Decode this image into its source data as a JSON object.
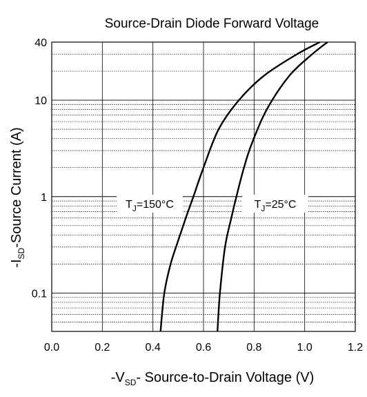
{
  "chart_data": {
    "type": "line",
    "title": "Source-Drain Diode Forward Voltage",
    "xlabel": {
      "prefix": "-V",
      "sub": "SD",
      "suffix": "- Source-to-Drain Voltage (V)"
    },
    "ylabel": {
      "prefix": "-I",
      "sub": "SD",
      "suffix": "-Source Current (A)"
    },
    "x_scale": "linear",
    "y_scale": "log",
    "xlim": [
      0.0,
      1.2
    ],
    "ylim": [
      0.04,
      40
    ],
    "x_ticks": [
      "0.0",
      "0.2",
      "0.4",
      "0.6",
      "0.8",
      "1.0",
      "1.2"
    ],
    "y_ticks": [
      "0.1",
      "1",
      "10",
      "40"
    ],
    "grid": true,
    "series": [
      {
        "label": {
          "prefix": "T",
          "sub": "J",
          "suffix": "=150°C"
        },
        "x": [
          0.43,
          0.445,
          0.47,
          0.5,
          0.53,
          0.56,
          0.6,
          0.66,
          0.74,
          0.84,
          0.97,
          1.06
        ],
        "y": [
          0.04,
          0.1,
          0.2,
          0.35,
          0.6,
          1.0,
          2.0,
          5.0,
          10.0,
          18.0,
          30.0,
          40.0
        ]
      },
      {
        "label": {
          "prefix": "T",
          "sub": "J",
          "suffix": "=25°C"
        },
        "x": [
          0.655,
          0.665,
          0.685,
          0.71,
          0.73,
          0.76,
          0.79,
          0.85,
          0.94,
          1.03,
          1.09
        ],
        "y": [
          0.04,
          0.1,
          0.3,
          0.6,
          1.0,
          2.0,
          3.5,
          8.0,
          18.0,
          30.0,
          40.0
        ]
      }
    ]
  }
}
